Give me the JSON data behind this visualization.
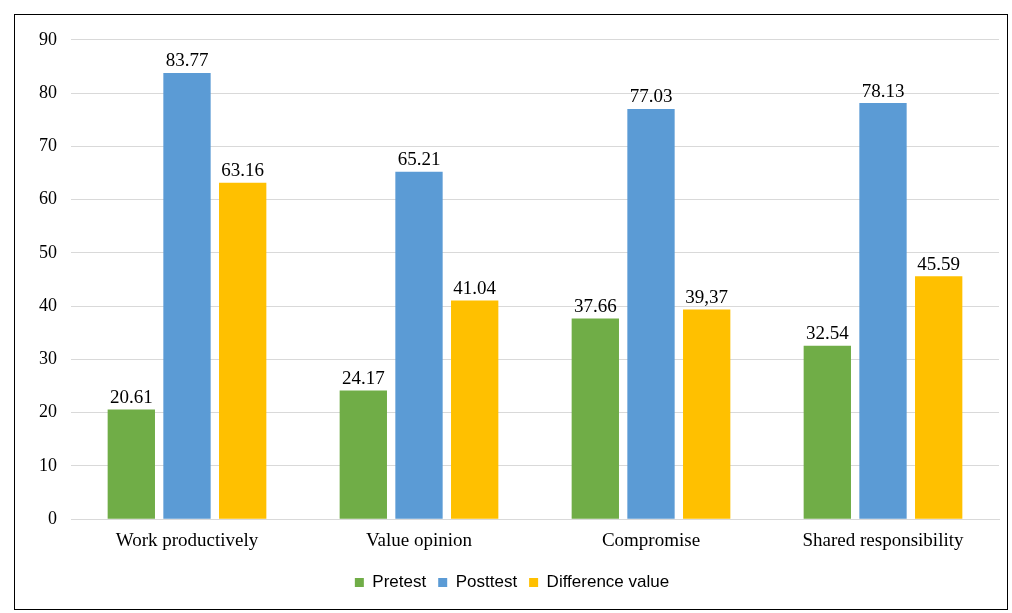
{
  "chart_data": {
    "type": "bar",
    "categories": [
      "Work productively",
      "Value opinion",
      "Compromise",
      "Shared responsibility"
    ],
    "series": [
      {
        "name": "Pretest",
        "color": "#70ad47",
        "values": [
          20.61,
          24.17,
          37.66,
          32.54
        ],
        "value_labels": [
          "20.61",
          "24.17",
          "37.66",
          "32.54"
        ]
      },
      {
        "name": "Posttest",
        "color": "#5b9bd5",
        "values": [
          83.77,
          65.21,
          77.03,
          78.13
        ],
        "value_labels": [
          "83.77",
          "65.21",
          "77.03",
          "78.13"
        ]
      },
      {
        "name": "Difference value",
        "color": "#ffc000",
        "values": [
          63.16,
          41.04,
          39.37,
          45.59
        ],
        "value_labels": [
          "63.16",
          "41.04",
          "39,37",
          "45.59"
        ]
      }
    ],
    "ylim": [
      0,
      90
    ],
    "yticks": [
      0,
      10,
      20,
      30,
      40,
      50,
      60,
      70,
      80,
      90
    ],
    "grid": "y",
    "legend": "bottom"
  }
}
